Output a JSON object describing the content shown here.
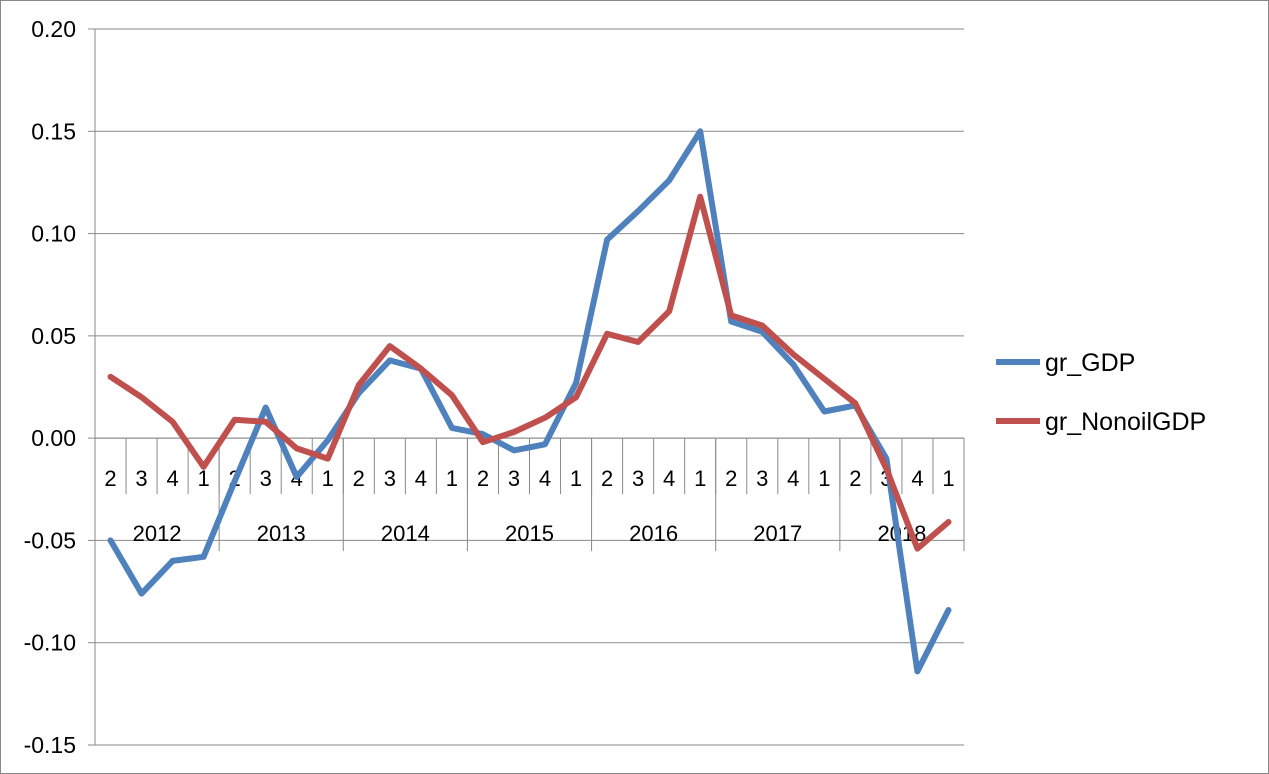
{
  "chart_data": {
    "type": "line",
    "quarters": [
      "2",
      "3",
      "4",
      "1",
      "2",
      "3",
      "4",
      "1",
      "2",
      "3",
      "4",
      "1",
      "2",
      "3",
      "4",
      "1",
      "2",
      "3",
      "4",
      "1",
      "2",
      "3",
      "4",
      "1",
      "2",
      "3",
      "4",
      "1"
    ],
    "years": [
      {
        "label": "2012",
        "start": 0,
        "end": 3
      },
      {
        "label": "2013",
        "start": 4,
        "end": 7
      },
      {
        "label": "2014",
        "start": 8,
        "end": 11
      },
      {
        "label": "2015",
        "start": 12,
        "end": 15
      },
      {
        "label": "2016",
        "start": 16,
        "end": 19
      },
      {
        "label": "2017",
        "start": 20,
        "end": 23
      },
      {
        "label": "2018",
        "start": 24,
        "end": 27
      }
    ],
    "series": [
      {
        "name": "gr_GDP",
        "color": "#4f81bd",
        "values": [
          -0.05,
          -0.076,
          -0.06,
          -0.058,
          -0.021,
          0.015,
          -0.019,
          -0.001,
          0.022,
          0.038,
          0.034,
          0.005,
          0.002,
          -0.006,
          -0.003,
          0.027,
          0.097,
          0.111,
          0.126,
          0.15,
          0.057,
          0.052,
          0.036,
          0.013,
          0.016,
          -0.01,
          -0.114,
          -0.084
        ]
      },
      {
        "name": "gr_NonoilGDP",
        "color": "#c0504d",
        "values": [
          0.03,
          0.02,
          0.008,
          -0.014,
          0.009,
          0.008,
          -0.005,
          -0.01,
          0.026,
          0.045,
          0.034,
          0.021,
          -0.002,
          0.003,
          0.01,
          0.02,
          0.051,
          0.047,
          0.062,
          0.118,
          0.06,
          0.055,
          0.041,
          0.029,
          0.017,
          -0.015,
          -0.054,
          -0.041
        ]
      }
    ],
    "ylim": [
      -0.15,
      0.2
    ],
    "yticks": [
      "0.20",
      "0.15",
      "0.10",
      "0.05",
      "0.00",
      "-0.05",
      "-0.10",
      "-0.15"
    ],
    "grid": true,
    "legend_position": "right",
    "title": "",
    "xlabel": "",
    "ylabel": ""
  }
}
